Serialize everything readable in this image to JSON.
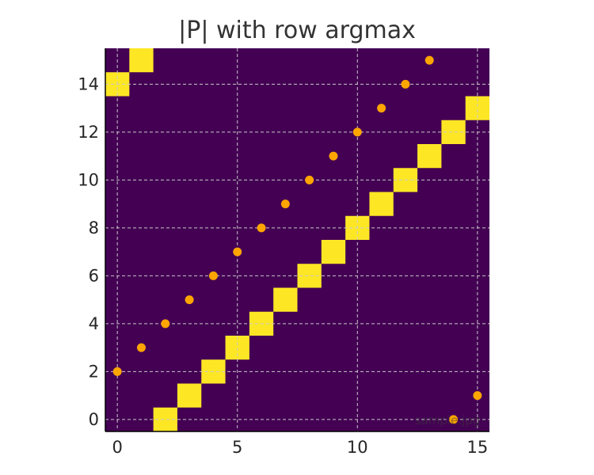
{
  "chart_data": {
    "type": "heatmap",
    "title": "|P| with row argmax",
    "xlabel": "",
    "ylabel": "",
    "xlim": [
      -0.5,
      15.5
    ],
    "ylim": [
      -0.5,
      15.5
    ],
    "xticks": [
      0,
      5,
      10,
      15
    ],
    "yticks": [
      0,
      2,
      4,
      6,
      8,
      10,
      12,
      14
    ],
    "grid": true,
    "colormap": "viridis",
    "colors": {
      "low": "#440154",
      "high": "#fde725",
      "marker": "#ffa500",
      "grid": "#c8c8c8",
      "axis": "#000000"
    },
    "matrix_ones": [
      {
        "row": 0,
        "col": 2
      },
      {
        "row": 1,
        "col": 3
      },
      {
        "row": 2,
        "col": 4
      },
      {
        "row": 3,
        "col": 5
      },
      {
        "row": 4,
        "col": 6
      },
      {
        "row": 5,
        "col": 7
      },
      {
        "row": 6,
        "col": 8
      },
      {
        "row": 7,
        "col": 9
      },
      {
        "row": 8,
        "col": 10
      },
      {
        "row": 9,
        "col": 11
      },
      {
        "row": 10,
        "col": 12
      },
      {
        "row": 11,
        "col": 13
      },
      {
        "row": 12,
        "col": 14
      },
      {
        "row": 13,
        "col": 15
      },
      {
        "row": 14,
        "col": 0
      },
      {
        "row": 15,
        "col": 1
      }
    ],
    "argmax_points": [
      {
        "x": 0,
        "y": 2
      },
      {
        "x": 1,
        "y": 3
      },
      {
        "x": 2,
        "y": 4
      },
      {
        "x": 3,
        "y": 5
      },
      {
        "x": 4,
        "y": 6
      },
      {
        "x": 5,
        "y": 7
      },
      {
        "x": 6,
        "y": 8
      },
      {
        "x": 7,
        "y": 9
      },
      {
        "x": 8,
        "y": 10
      },
      {
        "x": 9,
        "y": 11
      },
      {
        "x": 10,
        "y": 12
      },
      {
        "x": 11,
        "y": 13
      },
      {
        "x": 12,
        "y": 14
      },
      {
        "x": 13,
        "y": 15
      },
      {
        "x": 14,
        "y": 0
      },
      {
        "x": 15,
        "y": 1
      }
    ],
    "watermark": "sample.jpg"
  }
}
